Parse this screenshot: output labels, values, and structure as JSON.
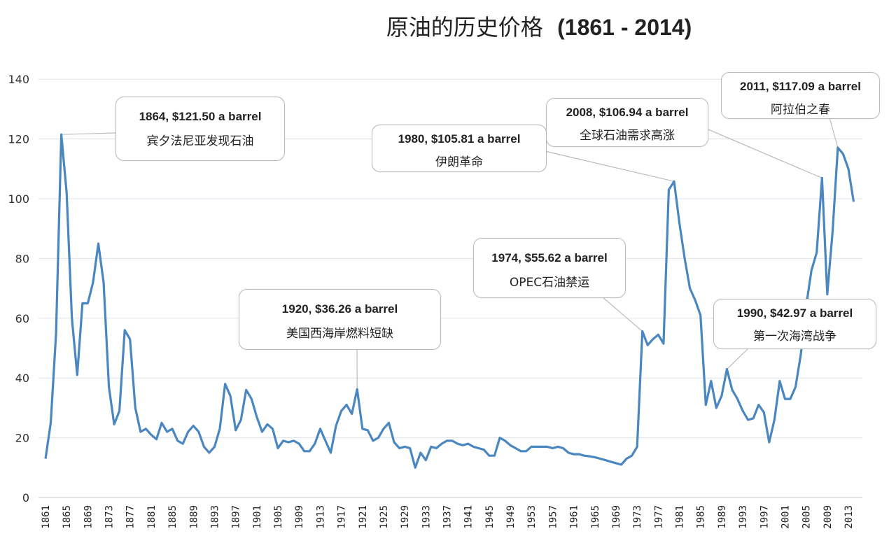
{
  "chart_data": {
    "type": "line",
    "title": "原油的历史价格",
    "title_years": "(1861 - 2014)",
    "xlabel": "",
    "ylabel": "",
    "ylim": [
      0,
      140
    ],
    "yticks": [
      0,
      20,
      40,
      60,
      80,
      100,
      120,
      140
    ],
    "xticks": [
      1861,
      1865,
      1869,
      1873,
      1877,
      1881,
      1885,
      1889,
      1893,
      1897,
      1901,
      1905,
      1909,
      1913,
      1917,
      1921,
      1925,
      1929,
      1933,
      1937,
      1941,
      1945,
      1949,
      1953,
      1957,
      1961,
      1965,
      1969,
      1973,
      1977,
      1981,
      1985,
      1989,
      1993,
      1997,
      2001,
      2005,
      2009,
      2013
    ],
    "grid": "horizontal",
    "line_color": "#4a86c0",
    "x_start": 1861,
    "values": [
      13,
      25,
      55,
      121.5,
      102,
      60,
      41,
      65,
      65,
      72,
      85,
      72,
      37,
      24.5,
      29,
      56,
      53,
      30,
      22,
      23,
      21,
      19.5,
      25,
      22,
      23,
      19,
      18,
      22,
      24,
      22,
      17,
      15,
      17,
      23,
      38,
      34,
      22.5,
      26,
      36,
      33,
      27,
      22,
      24.5,
      23,
      16.5,
      19,
      18.5,
      19,
      18,
      15.5,
      15.5,
      18,
      23,
      19,
      15,
      24,
      29,
      31,
      28,
      36.26,
      23,
      22.5,
      19,
      20,
      23,
      25,
      18.5,
      16.5,
      17,
      16.5,
      10,
      15,
      12.5,
      17,
      16.5,
      18,
      19,
      19,
      18,
      17.5,
      18,
      17,
      16.5,
      16,
      14,
      14,
      20,
      19,
      17.5,
      16.5,
      15.5,
      15.5,
      17,
      17,
      17,
      17,
      16.5,
      17,
      16.5,
      15,
      14.5,
      14.5,
      14,
      13.8,
      13.5,
      13,
      12.5,
      12,
      11.5,
      11,
      13,
      14,
      17,
      55.62,
      51,
      53,
      54.5,
      51.5,
      103,
      105.81,
      92,
      80,
      70,
      66,
      61,
      31,
      39,
      30,
      34,
      42.97,
      36,
      33,
      29,
      26,
      26.5,
      31,
      28.5,
      18.5,
      26,
      39,
      33,
      33,
      37,
      48,
      64,
      76,
      82,
      106.94,
      68,
      89,
      117.09,
      115,
      110,
      99
    ],
    "annotations": [
      {
        "year": 1864,
        "value": 121.5,
        "label": "1864, $121.50  a barrel",
        "note": "宾夕法尼亚发现石油"
      },
      {
        "year": 1980,
        "value": 105.81,
        "label": "1980, $105.81  a barrel",
        "note": "伊朗革命"
      },
      {
        "year": 2008,
        "value": 106.94,
        "label": "2008, $106.94  a barrel",
        "note": "全球石油需求高涨"
      },
      {
        "year": 2011,
        "value": 117.09,
        "label": "2011, $117.09  a barrel",
        "note": "阿拉伯之春"
      },
      {
        "year": 1920,
        "value": 36.26,
        "label": "1920, $36.26 a barrel",
        "note": "美国西海岸燃料短缺"
      },
      {
        "year": 1974,
        "value": 55.62,
        "label": "1974, $55.62 a barrel",
        "note": "OPEC石油禁运"
      },
      {
        "year": 1990,
        "value": 42.97,
        "label": "1990, $42.97 a barrel",
        "note": "第一次海湾战争"
      }
    ]
  }
}
